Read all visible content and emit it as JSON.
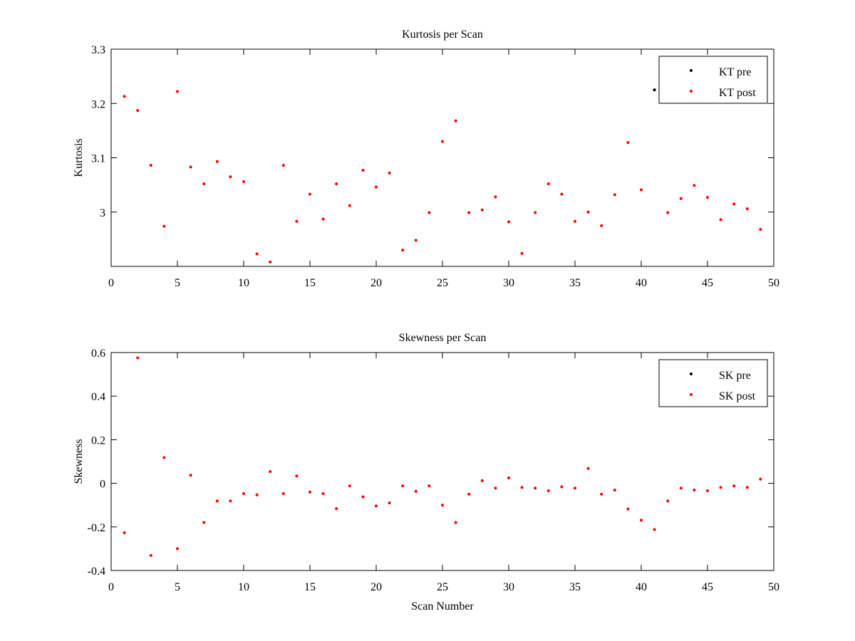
{
  "chart_data": [
    {
      "type": "scatter",
      "title": "Kurtosis per Scan",
      "xlabel": "",
      "ylabel": "Kurtosis",
      "xlim": [
        0,
        50
      ],
      "ylim": [
        2.9,
        3.3
      ],
      "xticks": [
        0,
        5,
        10,
        15,
        20,
        25,
        30,
        35,
        40,
        45,
        50
      ],
      "yticks": [
        3,
        3.1,
        3.2,
        3.3
      ],
      "grid": false,
      "legend_position": "top-right",
      "series": [
        {
          "name": "KT pre",
          "color": "#000000",
          "x": [
            41
          ],
          "y": [
            3.225
          ]
        },
        {
          "name": "KT post",
          "color": "#ff0000",
          "x": [
            1,
            2,
            3,
            4,
            5,
            6,
            7,
            8,
            9,
            10,
            11,
            12,
            13,
            14,
            15,
            16,
            17,
            18,
            19,
            20,
            21,
            22,
            23,
            24,
            25,
            26,
            27,
            28,
            29,
            30,
            31,
            32,
            33,
            34,
            35,
            36,
            37,
            38,
            39,
            40,
            41,
            42,
            43,
            44,
            45,
            46,
            47,
            48,
            49
          ],
          "y": [
            3.213,
            3.187,
            3.086,
            2.974,
            3.222,
            3.083,
            3.052,
            3.093,
            3.065,
            3.056,
            2.923,
            2.908,
            3.086,
            2.983,
            3.033,
            2.987,
            3.052,
            3.012,
            3.077,
            3.046,
            3.072,
            2.93,
            2.948,
            2.999,
            3.13,
            3.168,
            2.999,
            3.004,
            3.028,
            2.982,
            2.924,
            2.999,
            3.052,
            3.033,
            2.983,
            3.0,
            2.975,
            3.032,
            3.128,
            3.041,
            3.225,
            2.999,
            3.025,
            3.049,
            3.027,
            2.986,
            3.015,
            3.006,
            2.968
          ]
        }
      ]
    },
    {
      "type": "scatter",
      "title": "Skewness per Scan",
      "xlabel": "Scan Number",
      "ylabel": "Skewness",
      "xlim": [
        0,
        50
      ],
      "ylim": [
        -0.4,
        0.6
      ],
      "xticks": [
        0,
        5,
        10,
        15,
        20,
        25,
        30,
        35,
        40,
        45,
        50
      ],
      "yticks": [
        -0.4,
        -0.2,
        0,
        0.2,
        0.4,
        0.6
      ],
      "grid": false,
      "legend_position": "top-right",
      "series": [
        {
          "name": "SK pre",
          "color": "#000000",
          "x": [],
          "y": []
        },
        {
          "name": "SK post",
          "color": "#ff0000",
          "x": [
            1,
            2,
            3,
            4,
            5,
            6,
            7,
            8,
            9,
            10,
            11,
            12,
            13,
            14,
            15,
            16,
            17,
            18,
            19,
            20,
            21,
            22,
            23,
            24,
            25,
            26,
            27,
            28,
            29,
            30,
            31,
            32,
            33,
            34,
            35,
            36,
            37,
            38,
            39,
            40,
            41,
            42,
            43,
            44,
            45,
            46,
            47,
            48,
            49
          ],
          "y": [
            -0.227,
            0.576,
            -0.331,
            0.118,
            -0.3,
            0.037,
            -0.18,
            -0.081,
            -0.081,
            -0.047,
            -0.053,
            0.054,
            -0.047,
            0.034,
            -0.04,
            -0.047,
            -0.116,
            -0.012,
            -0.062,
            -0.104,
            -0.09,
            -0.012,
            -0.037,
            -0.012,
            -0.1,
            -0.18,
            -0.05,
            0.012,
            -0.022,
            0.025,
            -0.019,
            -0.022,
            -0.034,
            -0.016,
            -0.022,
            0.068,
            -0.05,
            -0.031,
            -0.118,
            -0.169,
            -0.212,
            -0.081,
            -0.022,
            -0.031,
            -0.034,
            -0.019,
            -0.012,
            -0.019,
            0.019
          ]
        }
      ]
    }
  ]
}
